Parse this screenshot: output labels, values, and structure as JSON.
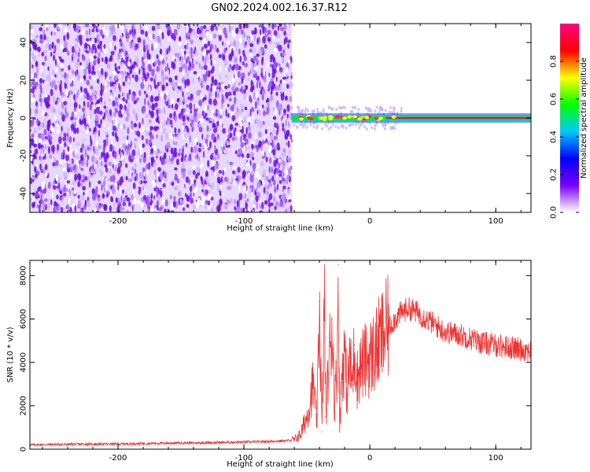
{
  "title": "GN02.2024.002.16.37.R12",
  "colors": {
    "snr_line": "#ef3333",
    "spec_base": "#7a1cf0",
    "axis": "#000000"
  },
  "chart_data": [
    {
      "type": "heatmap",
      "xlabel": "Height of straight line (km)",
      "ylabel": "Frequency (Hz)",
      "xlim": [
        -270,
        128
      ],
      "ylim": [
        -50,
        50
      ],
      "x_ticks": [
        "-200",
        "-100",
        "0",
        "100"
      ],
      "x_tick_values": [
        -200,
        -100,
        0,
        100
      ],
      "y_ticks": [
        "-40",
        "-20",
        "0",
        "20",
        "40"
      ],
      "y_tick_values": [
        -40,
        -20,
        0,
        20,
        40
      ],
      "noise_region_x": [
        -270,
        -62
      ],
      "signal_line": {
        "x": [
          -62,
          128
        ],
        "frequency": 0,
        "amplitude": 1.0
      },
      "colorbar": {
        "label": "Normalized spectral amplitude",
        "range": [
          0,
          1
        ],
        "ticks": [
          "0.0",
          "0.2",
          "0.4",
          "0.6",
          "0.8"
        ],
        "tick_values": [
          0.0,
          0.2,
          0.4,
          0.6,
          0.8
        ],
        "stops": [
          "#ffffff",
          "#7a00ff",
          "#0000ff",
          "#00c8ff",
          "#00ff00",
          "#ffff00",
          "#ff0000",
          "#ff0080"
        ]
      }
    },
    {
      "type": "line",
      "xlabel": "Height of straight line (km)",
      "ylabel": "SNR (10 * v/v)",
      "xlim": [
        -270,
        128
      ],
      "ylim": [
        0,
        8700
      ],
      "x_ticks": [
        "-200",
        "-100",
        "0",
        "100"
      ],
      "x_tick_values": [
        -200,
        -100,
        0,
        100
      ],
      "y_ticks": [
        "0",
        "2000",
        "4000",
        "6000",
        "8000"
      ],
      "y_tick_values": [
        0,
        2000,
        4000,
        6000,
        8000
      ],
      "series": [
        {
          "x": [
            -270,
            -250,
            -230,
            -200,
            -180,
            -160,
            -140,
            -120,
            -100,
            -90,
            -80,
            -70,
            -60,
            -55,
            -50,
            -45,
            -42,
            -40,
            -38,
            -36,
            -35,
            -33,
            -30,
            -28,
            -26,
            -25,
            -24,
            -22,
            -20,
            -18,
            -16,
            -14,
            -12,
            -10,
            -8,
            -5,
            0,
            5,
            10,
            15,
            20,
            25,
            30,
            35,
            40,
            45,
            50,
            55,
            60,
            70,
            80,
            90,
            100,
            110,
            120,
            128
          ],
          "values": [
            200,
            220,
            230,
            240,
            260,
            280,
            290,
            310,
            330,
            340,
            360,
            380,
            420,
            700,
            1500,
            3000,
            1200,
            6800,
            800,
            7000,
            1500,
            3500,
            6000,
            2000,
            4000,
            8500,
            1000,
            3800,
            4500,
            2500,
            4200,
            3000,
            4800,
            3200,
            3800,
            4000,
            4200,
            4600,
            5200,
            5600,
            6000,
            6300,
            6500,
            6400,
            6200,
            6000,
            5800,
            5600,
            5400,
            5300,
            5100,
            4900,
            4800,
            4700,
            4600,
            4550
          ]
        }
      ]
    }
  ]
}
